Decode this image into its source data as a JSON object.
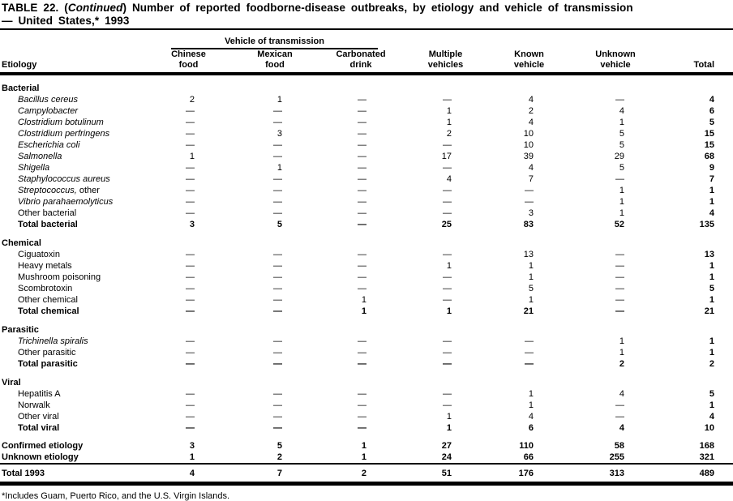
{
  "title": {
    "prefix": "TABLE 22. (",
    "continued": "Continued",
    "suffix": ") Number of reported foodborne-disease outbreaks, by etiology and vehicle of transmission",
    "line2": "— United States,* 1993"
  },
  "footnote": "*Includes Guam, Puerto Rico, and the U.S. Virgin Islands.",
  "table": {
    "spanner": "Vehicle of transmission",
    "columns": [
      {
        "line1": "",
        "line2": "Etiology"
      },
      {
        "line1": "Chinese",
        "line2": "food"
      },
      {
        "line1": "Mexican",
        "line2": "food"
      },
      {
        "line1": "Carbonated",
        "line2": "drink"
      },
      {
        "line1": "Multiple",
        "line2": "vehicles"
      },
      {
        "line1": "Known",
        "line2": "vehicle"
      },
      {
        "line1": "Unknown",
        "line2": "vehicle"
      },
      {
        "line1": "",
        "line2": "Total"
      }
    ],
    "sections": [
      {
        "header": "Bacterial",
        "rows": [
          {
            "label": "Bacillus cereus",
            "italic": true,
            "values": [
              "2",
              "1",
              "—",
              "—",
              "4",
              "—",
              "4"
            ]
          },
          {
            "label": "Campylobacter",
            "italic": true,
            "values": [
              "—",
              "—",
              "—",
              "1",
              "2",
              "4",
              "6"
            ]
          },
          {
            "label": "Clostridium botulinum",
            "italic": true,
            "values": [
              "—",
              "—",
              "—",
              "1",
              "4",
              "1",
              "5"
            ]
          },
          {
            "label": "Clostridium perfringens",
            "italic": true,
            "values": [
              "—",
              "3",
              "—",
              "2",
              "10",
              "5",
              "15"
            ]
          },
          {
            "label": "Escherichia coli",
            "italic": true,
            "values": [
              "—",
              "—",
              "—",
              "—",
              "10",
              "5",
              "15"
            ]
          },
          {
            "label": "Salmonella",
            "italic": true,
            "values": [
              "1",
              "—",
              "—",
              "17",
              "39",
              "29",
              "68"
            ]
          },
          {
            "label": "Shigella",
            "italic": true,
            "values": [
              "—",
              "1",
              "—",
              "—",
              "4",
              "5",
              "9"
            ]
          },
          {
            "label": "Staphylococcus aureus",
            "italic": true,
            "values": [
              "—",
              "—",
              "—",
              "4",
              "7",
              "—",
              "7"
            ]
          },
          {
            "label": "Streptococcus,",
            "label_suffix": " other",
            "italic": true,
            "values": [
              "—",
              "—",
              "—",
              "—",
              "—",
              "1",
              "1"
            ]
          },
          {
            "label": "Vibrio parahaemolyticus",
            "italic": true,
            "values": [
              "—",
              "—",
              "—",
              "—",
              "—",
              "1",
              "1"
            ]
          },
          {
            "label": "Other bacterial",
            "values": [
              "—",
              "—",
              "—",
              "—",
              "3",
              "1",
              "4"
            ]
          },
          {
            "label": "Total bacterial",
            "bold": true,
            "values": [
              "3",
              "5",
              "—",
              "25",
              "83",
              "52",
              "135"
            ]
          }
        ]
      },
      {
        "header": "Chemical",
        "rows": [
          {
            "label": "Ciguatoxin",
            "values": [
              "—",
              "—",
              "—",
              "—",
              "13",
              "—",
              "13"
            ]
          },
          {
            "label": "Heavy metals",
            "values": [
              "—",
              "—",
              "—",
              "1",
              "1",
              "—",
              "1"
            ]
          },
          {
            "label": "Mushroom poisoning",
            "values": [
              "—",
              "—",
              "—",
              "—",
              "1",
              "—",
              "1"
            ]
          },
          {
            "label": "Scombrotoxin",
            "values": [
              "—",
              "—",
              "—",
              "—",
              "5",
              "—",
              "5"
            ]
          },
          {
            "label": "Other chemical",
            "values": [
              "—",
              "—",
              "1",
              "—",
              "1",
              "—",
              "1"
            ]
          },
          {
            "label": "Total chemical",
            "bold": true,
            "values": [
              "—",
              "—",
              "1",
              "1",
              "21",
              "—",
              "21"
            ]
          }
        ]
      },
      {
        "header": "Parasitic",
        "rows": [
          {
            "label": "Trichinella spiralis",
            "italic": true,
            "values": [
              "—",
              "—",
              "—",
              "—",
              "—",
              "1",
              "1"
            ]
          },
          {
            "label": "Other parasitic",
            "values": [
              "—",
              "—",
              "—",
              "—",
              "—",
              "1",
              "1"
            ]
          },
          {
            "label": "Total parasitic",
            "bold": true,
            "values": [
              "—",
              "—",
              "—",
              "—",
              "—",
              "2",
              "2"
            ]
          }
        ]
      },
      {
        "header": "Viral",
        "rows": [
          {
            "label": "Hepatitis A",
            "values": [
              "—",
              "—",
              "—",
              "—",
              "1",
              "4",
              "5"
            ]
          },
          {
            "label": "Norwalk",
            "values": [
              "—",
              "—",
              "—",
              "—",
              "1",
              "—",
              "1"
            ]
          },
          {
            "label": "Other viral",
            "values": [
              "—",
              "—",
              "—",
              "1",
              "4",
              "—",
              "4"
            ]
          },
          {
            "label": "Total viral",
            "bold": true,
            "values": [
              "—",
              "—",
              "—",
              "1",
              "6",
              "4",
              "10"
            ]
          }
        ]
      },
      {
        "header": "",
        "kind": "summary",
        "rows": [
          {
            "label": "Confirmed etiology",
            "bold": true,
            "flush": true,
            "values": [
              "3",
              "5",
              "1",
              "27",
              "110",
              "58",
              "168"
            ]
          },
          {
            "label": "Unknown etiology",
            "bold": true,
            "flush": true,
            "values": [
              "1",
              "2",
              "1",
              "24",
              "66",
              "255",
              "321"
            ]
          }
        ]
      },
      {
        "header": "",
        "kind": "grand",
        "rows": [
          {
            "label": "Total 1993",
            "bold": true,
            "flush": true,
            "values": [
              "4",
              "7",
              "2",
              "51",
              "176",
              "313",
              "489"
            ]
          }
        ]
      }
    ]
  }
}
